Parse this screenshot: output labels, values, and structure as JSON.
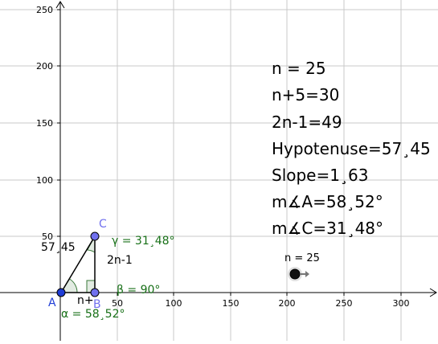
{
  "axes": {
    "x_ticks": [
      "50",
      "100",
      "150",
      "200",
      "250",
      "300"
    ],
    "y_ticks": [
      "50",
      "100",
      "150",
      "200",
      "250"
    ]
  },
  "info_panel": {
    "lines": [
      "n = 25",
      "n+5=30",
      "2n-1=49",
      "Hypotenuse=57¸45",
      "Slope=1¸63",
      "m∡A=58¸52°",
      "m∡C=31¸48°"
    ]
  },
  "slider": {
    "label": "n = 25",
    "value": 25
  },
  "triangle": {
    "points": {
      "a": "A",
      "b": "B",
      "c": "C"
    },
    "hypotenuse_label": "57¸45",
    "leg_vertical_label": "2n-1",
    "leg_horizontal_label": "n+",
    "angle_gamma": "γ = 31¸48°",
    "angle_beta": "β = 90°",
    "angle_alpha": "α = 58¸52°"
  },
  "colors": {
    "point_a": "#1f3dd6",
    "point_bc": "#7070ee",
    "angle_fill": "#3a7a3a",
    "angle_text": "#187018",
    "grid": "#c8c8c8"
  }
}
